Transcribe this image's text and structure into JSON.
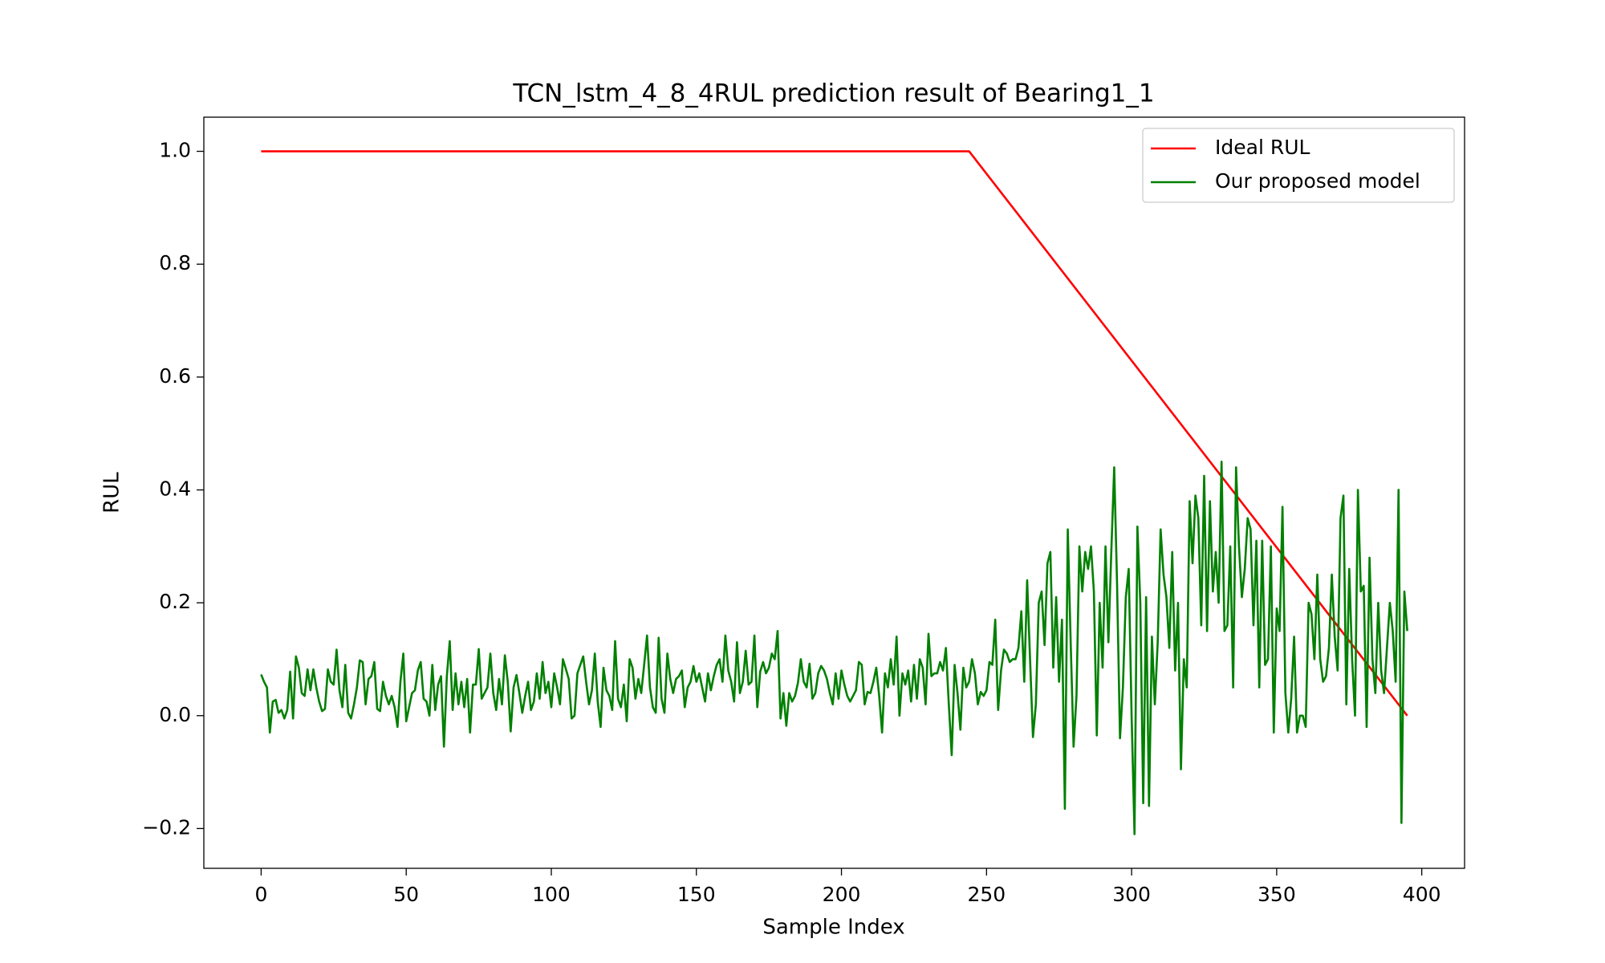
{
  "chart_data": {
    "type": "line",
    "title": "TCN_lstm_4_8_4RUL prediction result of Bearing1_1",
    "xlabel": "Sample Index",
    "ylabel": "RUL",
    "xlim": [
      -19.75,
      414.75
    ],
    "ylim": [
      -0.2705,
      1.0605
    ],
    "xticks": [
      0,
      50,
      100,
      150,
      200,
      250,
      300,
      350,
      400
    ],
    "yticks": [
      {
        "value": -0.2,
        "label": "−0.2"
      },
      {
        "value": 0,
        "label": "0.0"
      },
      {
        "value": 0.2,
        "label": "0.2"
      },
      {
        "value": 0.4,
        "label": "0.4"
      },
      {
        "value": 0.6,
        "label": "0.6"
      },
      {
        "value": 0.8,
        "label": "0.8"
      },
      {
        "value": 1,
        "label": "1.0"
      }
    ],
    "grid": false,
    "legend": "upper-right",
    "series": [
      {
        "name": "Ideal RUL",
        "color": "#ff0000",
        "x": [
          0,
          244,
          395
        ],
        "values": [
          1,
          1,
          0
        ]
      },
      {
        "name": "Our proposed model",
        "color": "#008000",
        "x": [
          0,
          1,
          2,
          3,
          4,
          5,
          6,
          7,
          8,
          9,
          10,
          11,
          12,
          13,
          14,
          15,
          16,
          17,
          18,
          19,
          20,
          21,
          22,
          23,
          24,
          25,
          26,
          27,
          28,
          29,
          30,
          31,
          32,
          33,
          34,
          35,
          36,
          37,
          38,
          39,
          40,
          41,
          42,
          43,
          44,
          45,
          46,
          47,
          48,
          49,
          50,
          51,
          52,
          53,
          54,
          55,
          56,
          57,
          58,
          59,
          60,
          61,
          62,
          63,
          64,
          65,
          66,
          67,
          68,
          69,
          70,
          71,
          72,
          73,
          74,
          75,
          76,
          77,
          78,
          79,
          80,
          81,
          82,
          83,
          84,
          85,
          86,
          87,
          88,
          89,
          90,
          91,
          92,
          93,
          94,
          95,
          96,
          97,
          98,
          99,
          100,
          101,
          102,
          103,
          104,
          105,
          106,
          107,
          108,
          109,
          110,
          111,
          112,
          113,
          114,
          115,
          116,
          117,
          118,
          119,
          120,
          121,
          122,
          123,
          124,
          125,
          126,
          127,
          128,
          129,
          130,
          131,
          132,
          133,
          134,
          135,
          136,
          137,
          138,
          139,
          140,
          141,
          142,
          143,
          144,
          145,
          146,
          147,
          148,
          149,
          150,
          151,
          152,
          153,
          154,
          155,
          156,
          157,
          158,
          159,
          160,
          161,
          162,
          163,
          164,
          165,
          166,
          167,
          168,
          169,
          170,
          171,
          172,
          173,
          174,
          175,
          176,
          177,
          178,
          179,
          180,
          181,
          182,
          183,
          184,
          185,
          186,
          187,
          188,
          189,
          190,
          191,
          192,
          193,
          194,
          195,
          196,
          197,
          198,
          199,
          200,
          201,
          202,
          203,
          204,
          205,
          206,
          207,
          208,
          209,
          210,
          211,
          212,
          213,
          214,
          215,
          216,
          217,
          218,
          219,
          220,
          221,
          222,
          223,
          224,
          225,
          226,
          227,
          228,
          229,
          230,
          231,
          232,
          233,
          234,
          235,
          236,
          237,
          238,
          239,
          240,
          241,
          242,
          243,
          244,
          245,
          246,
          247,
          248,
          249,
          250,
          251,
          252,
          253,
          254,
          255,
          256,
          257,
          258,
          259,
          260,
          261,
          262,
          263,
          264,
          265,
          266,
          267,
          268,
          269,
          270,
          271,
          272,
          273,
          274,
          275,
          276,
          277,
          278,
          279,
          280,
          281,
          282,
          283,
          284,
          285,
          286,
          287,
          288,
          289,
          290,
          291,
          292,
          293,
          294,
          295,
          296,
          297,
          298,
          299,
          300,
          301,
          302,
          303,
          304,
          305,
          306,
          307,
          308,
          309,
          310,
          311,
          312,
          313,
          314,
          315,
          316,
          317,
          318,
          319,
          320,
          321,
          322,
          323,
          324,
          325,
          326,
          327,
          328,
          329,
          330,
          331,
          332,
          333,
          334,
          335,
          336,
          337,
          338,
          339,
          340,
          341,
          342,
          343,
          344,
          345,
          346,
          347,
          348,
          349,
          350,
          351,
          352,
          353,
          354,
          355,
          356,
          357,
          358,
          359,
          360,
          361,
          362,
          363,
          364,
          365,
          366,
          367,
          368,
          369,
          370,
          371,
          372,
          373,
          374,
          375,
          376,
          377,
          378,
          379,
          380,
          381,
          382,
          383,
          384,
          385,
          386,
          387,
          388,
          389,
          390,
          391,
          392,
          393,
          394,
          395
        ],
        "values": [
          0.073,
          0.06,
          0.05,
          -0.03,
          0.025,
          0.028,
          0.005,
          0.01,
          -0.005,
          0.01,
          0.078,
          -0.005,
          0.105,
          0.085,
          0.04,
          0.035,
          0.082,
          0.045,
          0.082,
          0.05,
          0.025,
          0.008,
          0.012,
          0.082,
          0.06,
          0.055,
          0.117,
          0.045,
          0.015,
          0.09,
          0.005,
          -0.005,
          0.02,
          0.05,
          0.098,
          0.095,
          0.02,
          0.065,
          0.07,
          0.095,
          0.012,
          0.008,
          0.06,
          0.035,
          0.02,
          0.035,
          0.015,
          -0.02,
          0.06,
          0.11,
          -0.01,
          0.015,
          0.04,
          0.045,
          0.08,
          0.095,
          0.03,
          0.025,
          0.0,
          0.09,
          0.01,
          0.055,
          0.07,
          -0.055,
          0.07,
          0.132,
          0.01,
          0.075,
          0.02,
          0.06,
          0.015,
          0.065,
          -0.03,
          0.055,
          0.055,
          0.118,
          0.03,
          0.04,
          0.05,
          0.11,
          0.04,
          0.01,
          0.065,
          0.02,
          0.107,
          0.06,
          -0.028,
          0.05,
          0.072,
          0.04,
          0.005,
          0.035,
          0.06,
          0.01,
          0.025,
          0.075,
          0.03,
          0.095,
          0.04,
          0.06,
          0.015,
          0.075,
          0.05,
          0.02,
          0.1,
          0.083,
          0.065,
          -0.005,
          0.0,
          0.075,
          0.09,
          0.105,
          0.06,
          0.02,
          0.045,
          0.11,
          0.025,
          -0.02,
          0.085,
          0.045,
          0.035,
          0.01,
          0.132,
          0.03,
          0.015,
          0.055,
          -0.01,
          0.1,
          0.085,
          0.03,
          0.065,
          0.04,
          0.09,
          0.142,
          0.05,
          0.015,
          0.005,
          0.138,
          0.03,
          0.005,
          0.11,
          0.065,
          0.04,
          0.065,
          0.07,
          0.08,
          0.015,
          0.05,
          0.06,
          0.088,
          0.06,
          0.075,
          0.05,
          0.025,
          0.075,
          0.045,
          0.07,
          0.09,
          0.1,
          0.06,
          0.142,
          0.08,
          0.06,
          0.025,
          0.13,
          0.04,
          0.06,
          0.115,
          0.055,
          0.06,
          0.142,
          0.015,
          0.078,
          0.095,
          0.075,
          0.085,
          0.11,
          0.1,
          0.15,
          -0.005,
          0.04,
          -0.018,
          0.04,
          0.025,
          0.035,
          0.058,
          0.1,
          0.06,
          0.05,
          0.092,
          0.03,
          0.04,
          0.075,
          0.088,
          0.08,
          0.065,
          0.04,
          0.02,
          0.075,
          0.03,
          0.08,
          0.055,
          0.035,
          0.025,
          0.035,
          0.045,
          0.095,
          0.09,
          0.02,
          0.042,
          0.04,
          0.06,
          0.085,
          0.035,
          -0.03,
          0.075,
          0.05,
          0.1,
          0.055,
          0.14,
          0.0,
          0.075,
          0.055,
          0.08,
          0.025,
          0.09,
          0.03,
          0.1,
          0.085,
          0.02,
          0.145,
          0.07,
          0.075,
          0.075,
          0.095,
          0.08,
          0.12,
          0.02,
          -0.07,
          0.09,
          0.04,
          -0.025,
          0.085,
          0.05,
          0.06,
          0.1,
          0.075,
          0.02,
          0.042,
          0.035,
          0.045,
          0.095,
          0.09,
          0.17,
          0.01,
          0.08,
          0.117,
          0.11,
          0.095,
          0.1,
          0.1,
          0.12,
          0.185,
          0.06,
          0.24,
          0.1,
          -0.038,
          0.02,
          0.2,
          0.22,
          0.125,
          0.27,
          0.29,
          0.085,
          0.21,
          0.06,
          0.17,
          -0.165,
          0.33,
          0.13,
          -0.055,
          0.035,
          0.3,
          0.22,
          0.29,
          0.26,
          0.3,
          0.22,
          -0.035,
          0.2,
          0.085,
          0.3,
          0.13,
          0.29,
          0.44,
          0.23,
          -0.04,
          0.05,
          0.21,
          0.26,
          0.0,
          -0.21,
          0.335,
          0.2,
          -0.155,
          0.21,
          -0.16,
          0.14,
          0.02,
          0.13,
          0.33,
          0.25,
          0.21,
          0.12,
          0.29,
          0.08,
          0.2,
          -0.095,
          0.1,
          0.05,
          0.38,
          0.27,
          0.39,
          0.35,
          0.16,
          0.425,
          0.15,
          0.38,
          0.22,
          0.29,
          0.2,
          0.45,
          0.15,
          0.16,
          0.3,
          0.05,
          0.44,
          0.3,
          0.21,
          0.26,
          0.35,
          0.33,
          0.16,
          0.31,
          0.05,
          0.31,
          0.09,
          0.1,
          0.3,
          -0.03,
          0.19,
          0.15,
          0.37,
          0.04,
          -0.03,
          0.03,
          0.14,
          -0.03,
          0.0,
          0.0,
          -0.02,
          0.2,
          0.18,
          0.1,
          0.25,
          0.1,
          0.06,
          0.07,
          0.12,
          0.25,
          0.14,
          0.08,
          0.35,
          0.39,
          0.02,
          0.26,
          0.1,
          0.0,
          0.4,
          0.22,
          0.23,
          -0.02,
          0.28,
          0.1,
          0.04,
          0.2,
          0.08,
          0.04,
          0.12,
          0.2,
          0.15,
          0.06,
          0.4,
          -0.19,
          0.22,
          0.15
        ]
      }
    ]
  }
}
